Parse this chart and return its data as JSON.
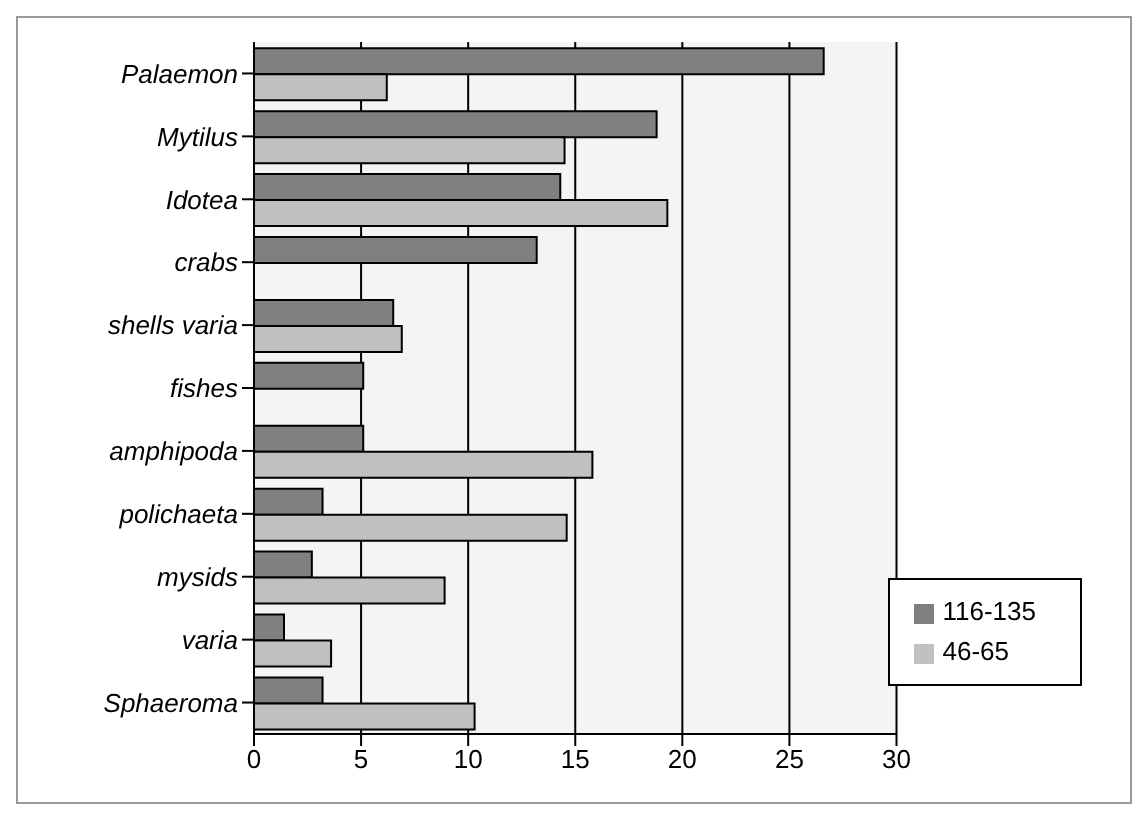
{
  "chart_data": {
    "type": "bar",
    "orientation": "horizontal",
    "categories": [
      "Palaemon",
      "Mytilus",
      "Idotea",
      "crabs",
      "shells varia",
      "fishes",
      "amphipoda",
      "polichaeta",
      "mysids",
      "varia",
      "Sphaeroma"
    ],
    "series": [
      {
        "name": "116-135",
        "color": "#808080",
        "values": [
          26.6,
          18.8,
          14.3,
          13.2,
          6.5,
          5.1,
          5.1,
          3.2,
          2.7,
          1.4,
          3.2
        ]
      },
      {
        "name": "46-65",
        "color": "#c0c0c0",
        "values": [
          6.2,
          14.5,
          19.3,
          null,
          6.9,
          null,
          15.8,
          14.6,
          8.9,
          3.6,
          10.3
        ]
      }
    ],
    "xlim": [
      0,
      30
    ],
    "xticks": [
      0,
      5,
      10,
      15,
      20,
      25,
      30
    ],
    "grid": "x",
    "legend": "bottom right"
  }
}
